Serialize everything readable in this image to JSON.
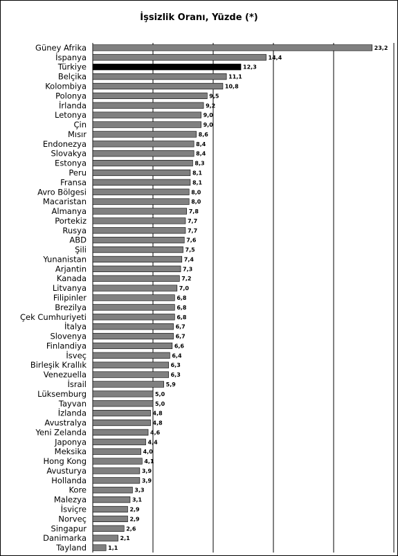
{
  "chart_data": {
    "type": "bar",
    "orientation": "horizontal",
    "title": "İşsizlik Oranı, Yüzde (*)",
    "xlim": [
      0,
      25
    ],
    "grid": true,
    "categories": [
      "Güney Afrika",
      "İspanya",
      "Türkiye",
      "Belçika",
      "Kolombiya",
      "Polonya",
      "İrlanda",
      "Letonya",
      "Çin",
      "Mısır",
      "Endonezya",
      "Slovakya",
      "Estonya",
      "Peru",
      "Fransa",
      "Avro Bölgesi",
      "Macaristan",
      "Almanya",
      "Portekiz",
      "Rusya",
      "ABD",
      "Şili",
      "Yunanistan",
      "Arjantin",
      "Kanada",
      "Litvanya",
      "Filipinler",
      "Brezilya",
      "Çek Cumhuriyeti",
      "İtalya",
      "Slovenya",
      "Finlandiya",
      "İsveç",
      "Birleşik Krallık",
      "Venezuella",
      "İsrail",
      "Lüksemburg",
      "Tayvan",
      "İzlanda",
      "Avustralya",
      "Yeni Zelanda",
      "Japonya",
      "Meksika",
      "Hong Kong",
      "Avusturya",
      "Hollanda",
      "Kore",
      "Malezya",
      "İsviçre",
      "Norveç",
      "Singapur",
      "Danimarka",
      "Tayland"
    ],
    "values": [
      23.2,
      14.4,
      12.3,
      11.1,
      10.8,
      9.5,
      9.2,
      9.0,
      9.0,
      8.6,
      8.4,
      8.4,
      8.3,
      8.1,
      8.1,
      8.0,
      8.0,
      7.8,
      7.7,
      7.7,
      7.6,
      7.5,
      7.4,
      7.3,
      7.2,
      7.0,
      6.8,
      6.8,
      6.8,
      6.7,
      6.7,
      6.6,
      6.4,
      6.3,
      6.3,
      5.9,
      5.0,
      5.0,
      4.8,
      4.8,
      4.6,
      4.4,
      4.0,
      4.1,
      3.9,
      3.9,
      3.3,
      3.1,
      2.9,
      2.9,
      2.6,
      2.1,
      1.1
    ],
    "value_labels": [
      "23,2",
      "14,4",
      "12,3",
      "11,1",
      "10,8",
      "9,5",
      "9,2",
      "9,0",
      "9,0",
      "8,6",
      "8,4",
      "8,4",
      "8,3",
      "8,1",
      "8,1",
      "8,0",
      "8,0",
      "7,8",
      "7,7",
      "7,7",
      "7,6",
      "7,5",
      "7,4",
      "7,3",
      "7,2",
      "7,0",
      "6,8",
      "6,8",
      "6,8",
      "6,7",
      "6,7",
      "6,6",
      "6,4",
      "6,3",
      "6,3",
      "5,9",
      "5,0",
      "5,0",
      "4,8",
      "4,8",
      "4,6",
      "4,4",
      "4,0",
      "4,1",
      "3,9",
      "3,9",
      "3,3",
      "3,1",
      "2,9",
      "2,9",
      "2,6",
      "2,1",
      "1,1"
    ],
    "highlight_category": "Türkiye",
    "colors": {
      "bar": "#808080",
      "highlight": "#000000",
      "grid": "#000000",
      "frame": "#000000"
    }
  }
}
